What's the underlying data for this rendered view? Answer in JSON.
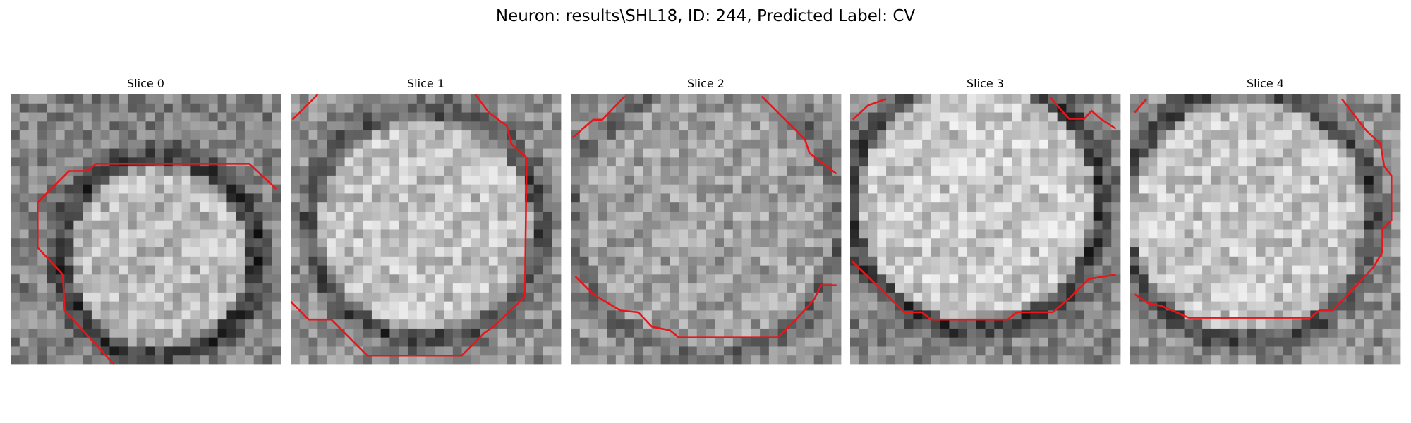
{
  "title": "Neuron: results\\SHL18, ID: 244, Predicted Label: CV",
  "panels": [
    {
      "title": "Slice 0"
    },
    {
      "title": "Slice 1"
    },
    {
      "title": "Slice 2"
    },
    {
      "title": "Slice 3"
    },
    {
      "title": "Slice 4"
    }
  ]
}
